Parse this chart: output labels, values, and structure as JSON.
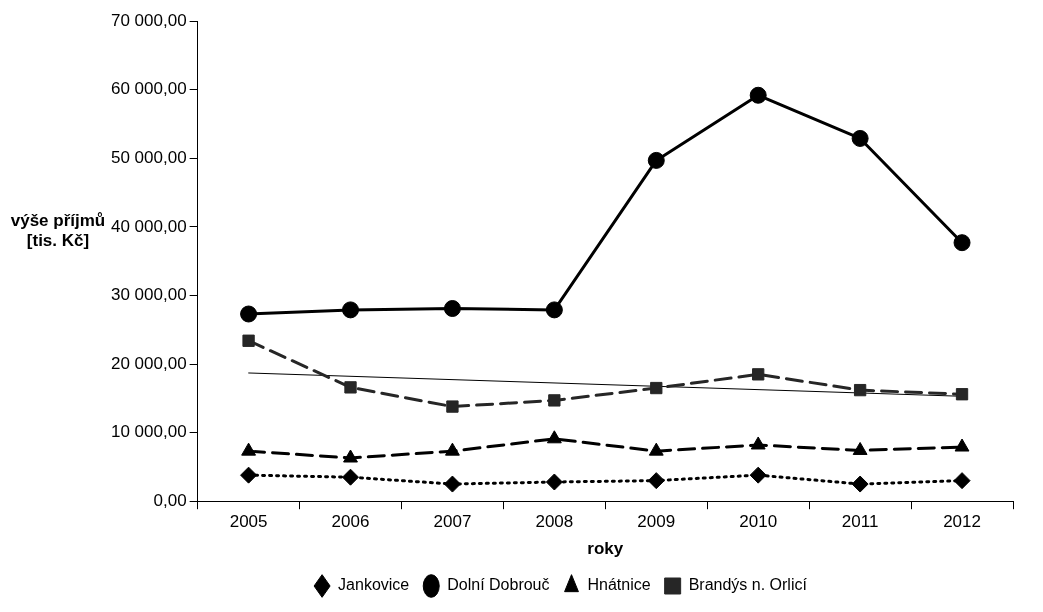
{
  "chart_data": {
    "type": "line",
    "xlabel": "roky",
    "ylabel": "výše příjmů [tis. Kč]",
    "categories": [
      "2005",
      "2006",
      "2007",
      "2008",
      "2009",
      "2010",
      "2011",
      "2012"
    ],
    "ylim": [
      0,
      70000
    ],
    "yticks": [
      {
        "value": 0,
        "label": "0,00"
      },
      {
        "value": 10000,
        "label": "10 000,00"
      },
      {
        "value": 20000,
        "label": "20 000,00"
      },
      {
        "value": 30000,
        "label": "30 000,00"
      },
      {
        "value": 40000,
        "label": "40 000,00"
      },
      {
        "value": 50000,
        "label": "50 000,00"
      },
      {
        "value": 60000,
        "label": "60 000,00"
      },
      {
        "value": 70000,
        "label": "70 000,00"
      }
    ],
    "grid": false,
    "legend": "bottom",
    "series": [
      {
        "name": "Jankovice",
        "color": "#000000",
        "marker": "diamond",
        "line_style": "dotted",
        "values": [
          3800,
          3500,
          2500,
          2800,
          3000,
          3800,
          2500,
          3000
        ]
      },
      {
        "name": "Dolní Dobrouč",
        "color": "#000000",
        "marker": "circle",
        "line_style": "solid",
        "values": [
          27300,
          27900,
          28100,
          27900,
          49700,
          59200,
          52900,
          37700
        ]
      },
      {
        "name": "Hnátnice",
        "color": "#000000",
        "marker": "triangle",
        "line_style": "dashed",
        "values": [
          7300,
          6300,
          7300,
          9100,
          7300,
          8200,
          7400,
          7900
        ]
      },
      {
        "name": "Brandýs n. Orlicí",
        "color": "#262626",
        "marker": "square",
        "line_style": "dashed",
        "values": [
          23400,
          16600,
          13800,
          14700,
          16500,
          18500,
          16200,
          15600
        ]
      },
      {
        "color": "#000000",
        "marker": "none",
        "line_style": "solid",
        "values": [
          18700,
          null,
          null,
          null,
          null,
          null,
          null,
          15300
        ]
      }
    ]
  }
}
